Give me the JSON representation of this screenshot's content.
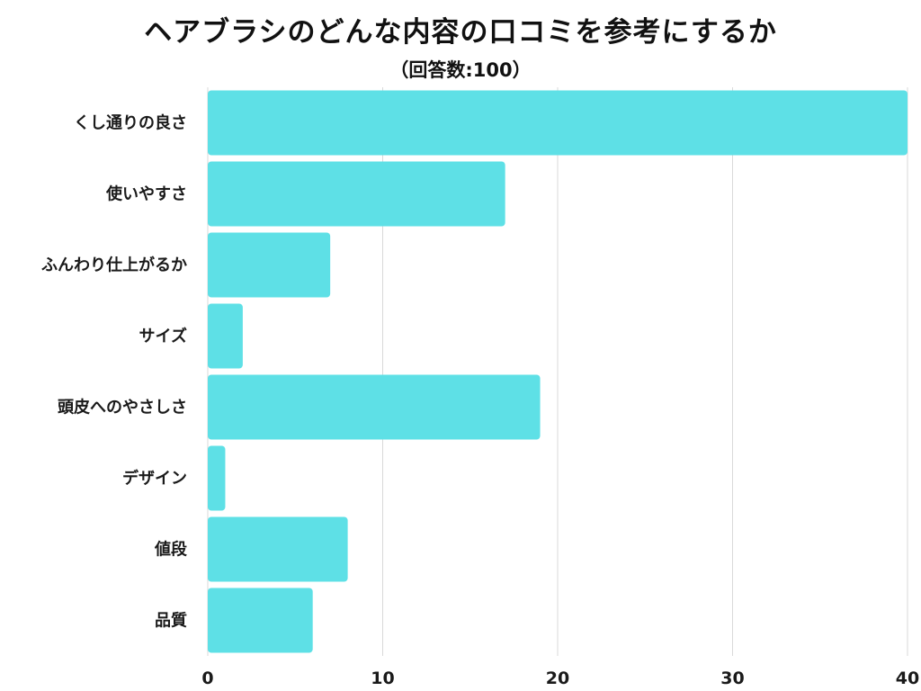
{
  "chart_data": {
    "type": "bar",
    "orientation": "horizontal",
    "title": "ヘアブラシのどんな内容の口コミを参考にするか",
    "subtitle": "（回答数:100）",
    "categories": [
      "くし通りの良さ",
      "使いやすさ",
      "ふんわり仕上がるか",
      "サイズ",
      "頭皮へのやさしさ",
      "デザイン",
      "値段",
      "品質"
    ],
    "values": [
      40,
      17,
      7,
      2,
      19,
      1,
      8,
      6
    ],
    "xlim": [
      0,
      40
    ],
    "xticks": [
      "0",
      "10",
      "20",
      "30",
      "40"
    ],
    "grid": true,
    "bar_color": "#5ee0e6",
    "grid_color": "#d9d9d9"
  }
}
